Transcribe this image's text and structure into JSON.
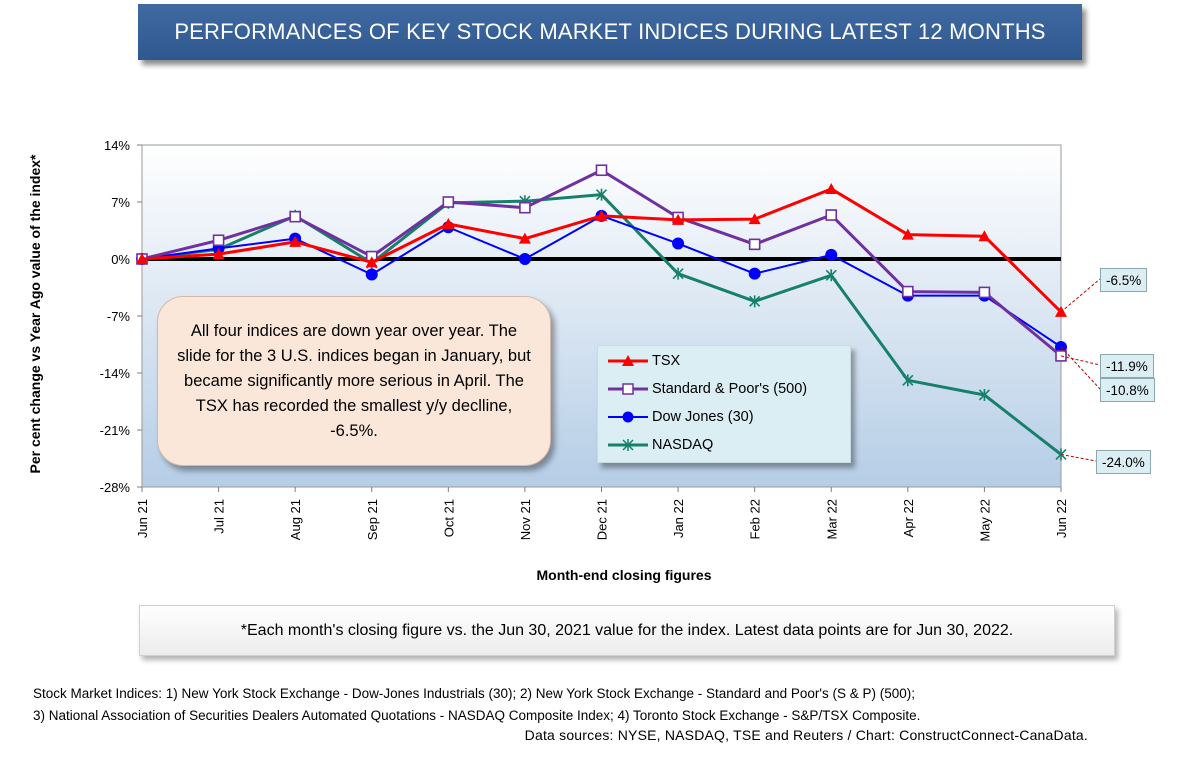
{
  "title": "PERFORMANCES OF KEY STOCK MARKET INDICES DURING LATEST 12 MONTHS",
  "note": "All four indices are down year over year. The slide for the 3 U.S. indices began in January, but became significantly more serious in April. The TSX has recorded the smallest y/y declline, -6.5%.",
  "footnote": "*Each month's closing figure vs. the Jun 30, 2021 value for the index. Latest data points are for Jun 30, 2022.",
  "sources": {
    "line1": "Stock Market Indices: 1) New York Stock Exchange - Dow-Jones Industrials (30); 2) New York Stock Exchange - Standard and Poor's (S & P) (500);",
    "line2": "3) National Association of Securities Dealers Automated Quotations - NASDAQ Composite Index; 4) Toronto Stock Exchange - S&P/TSX Composite.",
    "credit": "Data sources: NYSE, NASDAQ, TSE and Reuters / Chart: ConstructConnect-CanaData."
  },
  "callouts": {
    "tsx": "-6.5%",
    "sp500": "-11.9%",
    "dow": "-10.8%",
    "nasdaq": "-24.0%"
  },
  "colors": {
    "tsx": "#ff0000",
    "sp500": "#7030a0",
    "dow": "#0000ff",
    "nasdaq": "#17806b",
    "banner": "#37609a",
    "plot_top": "#ffffff",
    "plot_bottom": "#b7cfe8"
  },
  "chart_data": {
    "type": "line",
    "ylabel": "Per cent change vs Year Ago value of the index*",
    "xlabel": "Month-end closing figures",
    "categories": [
      "Jun 21",
      "Jul 21",
      "Aug 21",
      "Sep 21",
      "Oct 21",
      "Nov 21",
      "Dec 21",
      "Jan 22",
      "Feb 22",
      "Mar 22",
      "Apr 22",
      "May 22",
      "Jun 22"
    ],
    "ylim": [
      -28,
      14
    ],
    "yticks": [
      14,
      7,
      0,
      -7,
      -14,
      -21,
      -28
    ],
    "ytick_labels": [
      "14%",
      "7%",
      "0%",
      "-7%",
      "-14%",
      "-21%",
      "-28%"
    ],
    "grid": false,
    "legend_position": "inside-center-right",
    "series": [
      {
        "name": "TSX",
        "marker": "triangle",
        "values": [
          0,
          0.6,
          2.1,
          -0.4,
          4.3,
          2.5,
          5.3,
          4.8,
          4.9,
          8.6,
          3.0,
          2.8,
          -6.5
        ]
      },
      {
        "name": "Standard & Poor's (500)",
        "marker": "square",
        "values": [
          0,
          2.3,
          5.2,
          0.3,
          7.0,
          6.3,
          10.9,
          5.1,
          1.8,
          5.4,
          -4.0,
          -4.1,
          -11.9
        ]
      },
      {
        "name": "Dow Jones (30)",
        "marker": "circle",
        "values": [
          0,
          1.3,
          2.5,
          -1.9,
          3.9,
          0.0,
          5.3,
          1.9,
          -1.8,
          0.5,
          -4.5,
          -4.5,
          -10.8
        ]
      },
      {
        "name": "NASDAQ",
        "marker": "asterisk",
        "values": [
          0,
          1.2,
          5.3,
          -0.5,
          6.9,
          7.1,
          7.9,
          -1.8,
          -5.2,
          -2.0,
          -14.9,
          -16.7,
          -24.0
        ]
      }
    ]
  }
}
